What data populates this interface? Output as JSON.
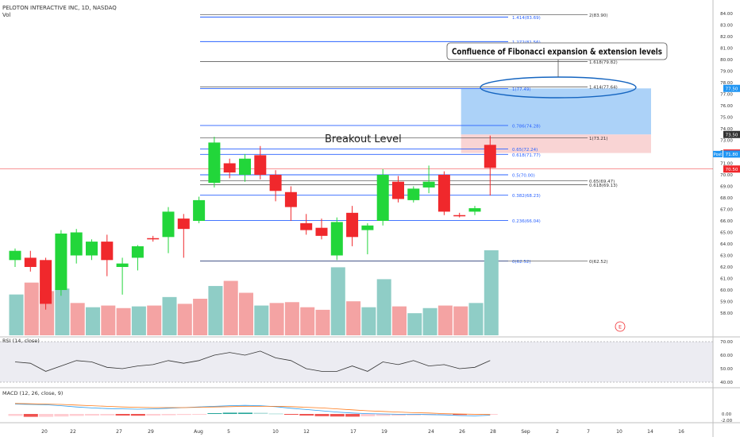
{
  "header": {
    "symbol_line": "PELOTON INTERACTIVE INC, 1D, NASDAQ",
    "vol_label": "Vol"
  },
  "annotations": {
    "callout": "Confluence of Fibonacci expansion & extension levels",
    "breakout": "Breakout Level",
    "earnings_marker": "E"
  },
  "colors": {
    "up": "#22d63a",
    "down": "#f0282c",
    "fib": "#2962ff",
    "fib_label": "#2962ff",
    "rsi": "#333333",
    "macd": "#2a9cf0",
    "signal": "#ff7a1a",
    "callout_ellipse": "#1565c0",
    "target_zone": "#90c3f5",
    "stop_zone": "#f8c9c9"
  },
  "chart_data": [
    {
      "type": "candlestick",
      "title": "PELOTON INTERACTIVE INC, 1D, NASDAQ",
      "x_tick_labels": [
        "20",
        "22",
        "27",
        "29",
        "Aug",
        "5",
        "10",
        "12",
        "17",
        "19",
        "24",
        "26",
        "28",
        "Sep",
        "2",
        "7",
        "10",
        "14",
        "16"
      ],
      "y_ticks": [
        58,
        59,
        60,
        61,
        62,
        63,
        64,
        65,
        66,
        67,
        68,
        69,
        70,
        71,
        72,
        73,
        74,
        75,
        76,
        77,
        78,
        79,
        80,
        81,
        82,
        83,
        84
      ],
      "ylim": [
        57.5,
        84.6
      ],
      "candles": [
        {
          "o": 62.6,
          "h": 63.6,
          "l": 62.0,
          "c": 63.4
        },
        {
          "o": 62.8,
          "h": 63.4,
          "l": 61.6,
          "c": 62.0
        },
        {
          "o": 62.6,
          "h": 62.8,
          "l": 58.3,
          "c": 58.8
        },
        {
          "o": 60.0,
          "h": 65.2,
          "l": 59.5,
          "c": 64.9
        },
        {
          "o": 63.0,
          "h": 65.3,
          "l": 62.3,
          "c": 65.0
        },
        {
          "o": 63.0,
          "h": 64.4,
          "l": 62.6,
          "c": 64.2
        },
        {
          "o": 64.2,
          "h": 64.8,
          "l": 61.2,
          "c": 62.6
        },
        {
          "o": 62.0,
          "h": 62.8,
          "l": 59.6,
          "c": 62.3
        },
        {
          "o": 62.8,
          "h": 63.9,
          "l": 61.7,
          "c": 63.8
        },
        {
          "o": 64.5,
          "h": 64.7,
          "l": 64.2,
          "c": 64.4
        },
        {
          "o": 64.6,
          "h": 67.2,
          "l": 63.2,
          "c": 66.8
        },
        {
          "o": 66.2,
          "h": 66.6,
          "l": 62.8,
          "c": 65.3
        },
        {
          "o": 66.0,
          "h": 68.1,
          "l": 65.8,
          "c": 67.8
        },
        {
          "o": 69.3,
          "h": 73.3,
          "l": 68.9,
          "c": 72.8
        },
        {
          "o": 71.0,
          "h": 71.4,
          "l": 69.7,
          "c": 70.2
        },
        {
          "o": 70.0,
          "h": 71.8,
          "l": 69.4,
          "c": 71.4
        },
        {
          "o": 71.7,
          "h": 72.5,
          "l": 69.6,
          "c": 70.0
        },
        {
          "o": 70.0,
          "h": 70.4,
          "l": 67.7,
          "c": 68.6
        },
        {
          "o": 68.5,
          "h": 69.0,
          "l": 66.0,
          "c": 67.2
        },
        {
          "o": 65.8,
          "h": 66.6,
          "l": 64.8,
          "c": 65.2
        },
        {
          "o": 65.4,
          "h": 66.2,
          "l": 64.4,
          "c": 64.7
        },
        {
          "o": 63.0,
          "h": 66.3,
          "l": 62.6,
          "c": 65.9
        },
        {
          "o": 66.7,
          "h": 67.3,
          "l": 63.8,
          "c": 64.6
        },
        {
          "o": 65.2,
          "h": 65.8,
          "l": 63.1,
          "c": 65.6
        },
        {
          "o": 66.0,
          "h": 70.5,
          "l": 65.6,
          "c": 70.0
        },
        {
          "o": 69.4,
          "h": 69.9,
          "l": 67.6,
          "c": 67.9
        },
        {
          "o": 67.8,
          "h": 69.0,
          "l": 67.6,
          "c": 68.8
        },
        {
          "o": 68.9,
          "h": 70.8,
          "l": 68.4,
          "c": 69.4
        },
        {
          "o": 70.0,
          "h": 70.3,
          "l": 66.5,
          "c": 66.8
        },
        {
          "o": 66.5,
          "h": 66.7,
          "l": 66.3,
          "c": 66.4
        },
        {
          "o": 66.8,
          "h": 67.3,
          "l": 66.5,
          "c": 67.1
        },
        {
          "o": 72.6,
          "h": 73.4,
          "l": 68.2,
          "c": 70.6
        }
      ],
      "volume": [
        {
          "v": 0.48,
          "up": true
        },
        {
          "v": 0.62,
          "up": false
        },
        {
          "v": 0.52,
          "up": false
        },
        {
          "v": 0.55,
          "up": true
        },
        {
          "v": 0.38,
          "up": false
        },
        {
          "v": 0.33,
          "up": true
        },
        {
          "v": 0.35,
          "up": false
        },
        {
          "v": 0.32,
          "up": false
        },
        {
          "v": 0.34,
          "up": true
        },
        {
          "v": 0.35,
          "up": false
        },
        {
          "v": 0.45,
          "up": true
        },
        {
          "v": 0.37,
          "up": false
        },
        {
          "v": 0.43,
          "up": false
        },
        {
          "v": 0.58,
          "up": true
        },
        {
          "v": 0.64,
          "up": false
        },
        {
          "v": 0.5,
          "up": false
        },
        {
          "v": 0.35,
          "up": true
        },
        {
          "v": 0.38,
          "up": false
        },
        {
          "v": 0.39,
          "up": false
        },
        {
          "v": 0.33,
          "up": false
        },
        {
          "v": 0.3,
          "up": false
        },
        {
          "v": 0.8,
          "up": true
        },
        {
          "v": 0.4,
          "up": false
        },
        {
          "v": 0.33,
          "up": true
        },
        {
          "v": 0.66,
          "up": true
        },
        {
          "v": 0.34,
          "up": false
        },
        {
          "v": 0.26,
          "up": true
        },
        {
          "v": 0.32,
          "up": true
        },
        {
          "v": 0.35,
          "up": false
        },
        {
          "v": 0.34,
          "up": false
        },
        {
          "v": 0.38,
          "up": true
        },
        {
          "v": 1.0,
          "up": true
        }
      ],
      "fib_levels": [
        {
          "label": "0(62.52)",
          "y": 62.52
        },
        {
          "label": "0.236(66.04)",
          "y": 66.04
        },
        {
          "label": "0.382(68.23)",
          "y": 68.23
        },
        {
          "label": "0.5(70.00)",
          "y": 70.0
        },
        {
          "label": "0.618(71.77)",
          "y": 71.77
        },
        {
          "label": "0.65(72.24)",
          "y": 72.24
        },
        {
          "label": "0.786(74.28)",
          "y": 74.28
        },
        {
          "label": "1(77.49)",
          "y": 77.49
        },
        {
          "label": "1.272(81.56)",
          "y": 81.56
        },
        {
          "label": "1.414(83.69)",
          "y": 83.69
        }
      ],
      "ext_levels": [
        {
          "label": "0(62.52)",
          "y": 62.52
        },
        {
          "label": "0.618(69.13)",
          "y": 69.13
        },
        {
          "label": "0.65(69.47)",
          "y": 69.47
        },
        {
          "label": "1(73.21)",
          "y": 73.21
        },
        {
          "label": "1.414(77.64)",
          "y": 77.64
        },
        {
          "label": "1.618(79.82)",
          "y": 79.82
        },
        {
          "label": "2(83.90)",
          "y": 83.9
        }
      ],
      "price_labels": [
        {
          "label": "77.50",
          "y": 77.5,
          "color": "#2196f3"
        },
        {
          "label": "73.50",
          "y": 73.5,
          "color": "#333333"
        },
        {
          "label": "71.89",
          "y": 71.89,
          "color": "#f0282c"
        },
        {
          "label": "71.80",
          "y": 71.8,
          "color": "#2196f3",
          "prefix": "Post"
        },
        {
          "label": "70.50",
          "y": 70.5,
          "color": "#f0282c"
        }
      ],
      "breakout_level": 73.5,
      "target_zone": [
        73.5,
        77.5
      ],
      "stop_zone": [
        71.89,
        73.5
      ]
    },
    {
      "type": "line",
      "title": "RSI (14, close)",
      "y_ticks": [
        40.0,
        50.0,
        60.0,
        70.0
      ],
      "ylim": [
        37,
        72
      ],
      "band": [
        40,
        70
      ],
      "values": [
        55,
        54,
        48,
        52,
        56,
        55,
        51,
        50,
        52,
        53,
        56,
        54,
        56,
        60,
        62,
        60,
        63,
        58,
        56,
        50,
        48,
        48,
        52,
        48,
        55,
        53,
        56,
        52,
        53,
        50,
        51,
        56
      ]
    },
    {
      "type": "bar",
      "title": "MACD (12, 26, close, 9)",
      "y_ticks": [
        0.0,
        -2.0
      ],
      "ylim": [
        -3.2,
        3.4
      ],
      "histogram": [
        -0.6,
        -0.9,
        -0.9,
        -0.8,
        -0.6,
        -0.5,
        -0.45,
        -0.5,
        -0.55,
        -0.5,
        -0.4,
        -0.3,
        -0.2,
        0.25,
        0.4,
        0.4,
        0.38,
        0.15,
        -0.2,
        -0.5,
        -0.7,
        -0.8,
        -0.85,
        -0.75,
        -0.6,
        -0.55,
        -0.45,
        -0.35,
        -0.25,
        -0.3,
        -0.3,
        -0.1
      ],
      "macd": [
        3.1,
        3.0,
        2.9,
        2.6,
        2.2,
        1.9,
        1.7,
        1.6,
        1.5,
        1.6,
        1.8,
        2.0,
        2.2,
        2.4,
        2.6,
        2.7,
        2.6,
        2.3,
        1.8,
        1.4,
        1.0,
        0.6,
        0.3,
        0.1,
        0.0,
        -0.1,
        -0.1,
        -0.2,
        -0.3,
        -0.5,
        -0.6,
        -0.4
      ],
      "signal": [
        3.3,
        3.2,
        3.1,
        3.0,
        2.8,
        2.6,
        2.4,
        2.2,
        2.1,
        2.0,
        2.0,
        2.0,
        2.1,
        2.2,
        2.3,
        2.4,
        2.4,
        2.4,
        2.3,
        2.1,
        1.9,
        1.6,
        1.3,
        1.0,
        0.8,
        0.6,
        0.4,
        0.3,
        0.1,
        0.0,
        -0.1,
        -0.2
      ]
    }
  ]
}
